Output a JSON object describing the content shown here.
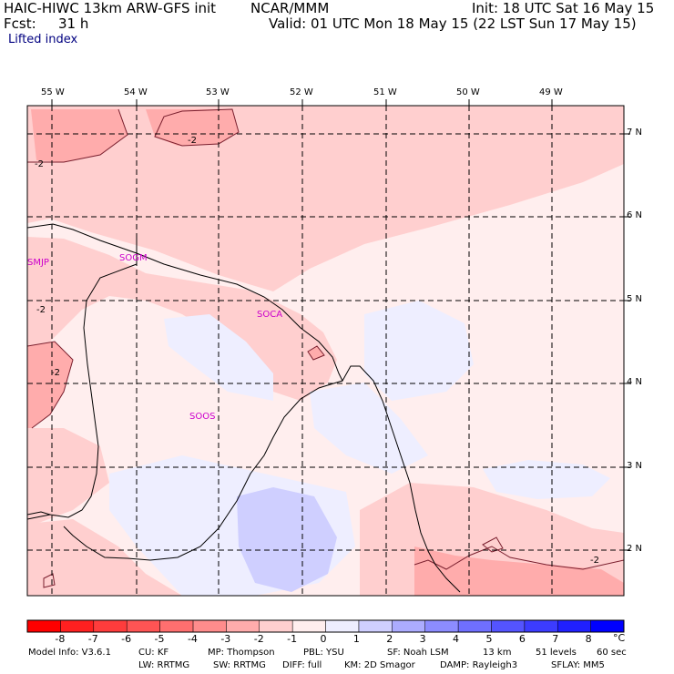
{
  "header": {
    "model_line": "HAIC-HIWC 13km ARW-GFS init",
    "org": "NCAR/MMM",
    "init": "Init: 18 UTC Sat 16 May 15",
    "fcst_label": "Fcst:",
    "fcst_value": "31 h",
    "valid": "Valid: 01 UTC Mon 18 May 15 (22 LST Sun 17 May 15)",
    "field": "Lifted index"
  },
  "map": {
    "lon_labels": [
      "55 W",
      "54 W",
      "53 W",
      "52 W",
      "51 W",
      "50 W",
      "49 W"
    ],
    "lat_labels": [
      "7 N",
      "6 N",
      "5 N",
      "4 N",
      "3 N",
      "2 N"
    ],
    "stations": [
      "SMJP",
      "SOGM",
      "SOCA",
      "SOOS"
    ],
    "contour_labels": [
      "-2",
      "-2",
      "-2",
      "-2",
      "-2"
    ]
  },
  "colorbar": {
    "levels": [
      "-8",
      "-7",
      "-6",
      "-5",
      "-4",
      "-3",
      "-2",
      "-1",
      "0",
      "1",
      "2",
      "3",
      "4",
      "5",
      "6",
      "7",
      "8"
    ],
    "unit": "°C",
    "colors": [
      "#ff0000",
      "#ff2020",
      "#ff3c3c",
      "#ff5454",
      "#ff6f6f",
      "#ff8c8c",
      "#ffacac",
      "#ffcfcf",
      "#ffeeee",
      "#eeeeff",
      "#cfcfff",
      "#acacff",
      "#8c8cff",
      "#6f6fff",
      "#5454ff",
      "#3c3cff",
      "#2020ff",
      "#0000ff"
    ]
  },
  "model_info": {
    "line1": [
      "Model Info: V3.6.1",
      "CU: KF",
      "MP: Thompson",
      "PBL: YSU",
      "SF: Noah LSM",
      "13 km",
      "51 levels",
      "60 sec"
    ],
    "line2": [
      "LW: RRTMG",
      "SW: RRTMG",
      "DIFF: full",
      "KM: 2D Smagor",
      "DAMP: Rayleigh3",
      "SFLAY: MM5"
    ]
  }
}
